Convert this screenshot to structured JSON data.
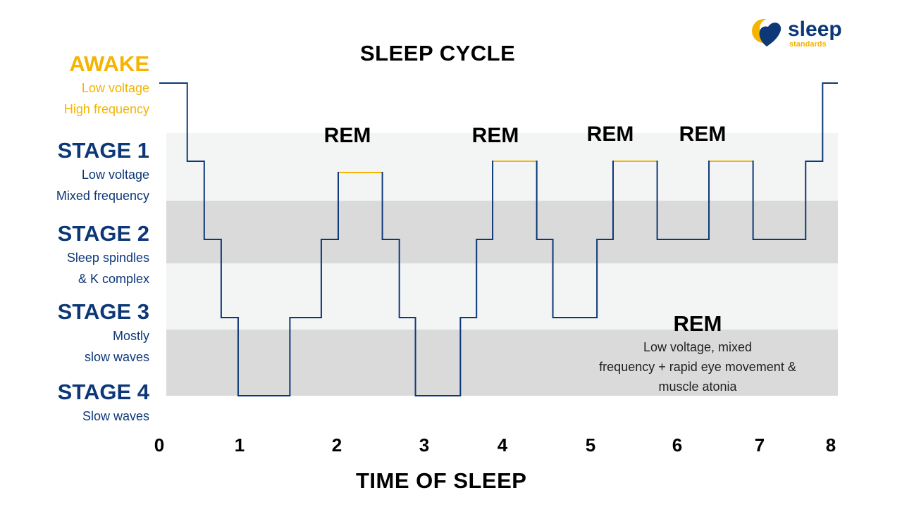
{
  "title": "SLEEP CYCLE",
  "logo": {
    "word": "sleep",
    "subword": "standards"
  },
  "stages": [
    {
      "name": "AWAKE",
      "desc": [
        "Low voltage",
        "High frequency"
      ]
    },
    {
      "name": "STAGE 1",
      "desc": [
        "Low voltage",
        "Mixed frequency"
      ]
    },
    {
      "name": "STAGE 2",
      "desc": [
        "Sleep spindles",
        "& K complex"
      ]
    },
    {
      "name": "STAGE 3",
      "desc": [
        "Mostly",
        "slow waves"
      ]
    },
    {
      "name": "STAGE 4",
      "desc": [
        "Slow waves"
      ]
    }
  ],
  "rem_note": {
    "heading": "REM",
    "desc": [
      "Low voltage, mixed",
      "frequency + rapid eye movement &",
      "muscle atonia"
    ]
  },
  "colors": {
    "line": "#0d3878",
    "rem_highlight": "#f4b400",
    "band_light": "#f3f4f4",
    "band_dark": "#dadada",
    "awake_text": "#f4b400",
    "stage_text": "#0d3878"
  },
  "chart_data": {
    "type": "line",
    "title": "SLEEP CYCLE",
    "xlabel": "TIME OF SLEEP",
    "ylabel": "",
    "xlim": [
      0,
      8
    ],
    "x_ticks": [
      "0",
      "1",
      "2",
      "3",
      "4",
      "5",
      "6",
      "7",
      "8"
    ],
    "y_categories": [
      "AWAKE",
      "STAGE 1",
      "STAGE 2",
      "STAGE 3",
      "STAGE 4"
    ],
    "series": [
      {
        "step_path": [
          [
            0,
            "AWAKE"
          ],
          [
            0.33,
            "STAGE 1"
          ],
          [
            0.53,
            "STAGE 2"
          ],
          [
            0.73,
            "STAGE 3"
          ],
          [
            0.93,
            "STAGE 4"
          ],
          [
            1.54,
            "STAGE 3"
          ],
          [
            1.91,
            "STAGE 2"
          ],
          [
            2.11,
            "REM"
          ],
          [
            2.63,
            "STAGE 2"
          ],
          [
            2.83,
            "STAGE 3"
          ],
          [
            3.02,
            "STAGE 4"
          ],
          [
            3.55,
            "STAGE 3"
          ],
          [
            3.74,
            "STAGE 2"
          ],
          [
            3.93,
            "REM"
          ],
          [
            4.45,
            "STAGE 2"
          ],
          [
            4.64,
            "STAGE 3"
          ],
          [
            5.16,
            "STAGE 2"
          ],
          [
            5.35,
            "REM"
          ],
          [
            5.87,
            "STAGE 2"
          ],
          [
            6.48,
            "REM"
          ],
          [
            7.0,
            "STAGE 2"
          ],
          [
            7.62,
            "STAGE 1"
          ],
          [
            7.82,
            "AWAKE"
          ],
          [
            8.0,
            "AWAKE"
          ]
        ]
      }
    ],
    "rem_periods": [
      {
        "label": "REM",
        "start": 2.11,
        "end": 2.63
      },
      {
        "label": "REM",
        "start": 3.93,
        "end": 4.45
      },
      {
        "label": "REM",
        "start": 5.35,
        "end": 5.87
      },
      {
        "label": "REM",
        "start": 6.48,
        "end": 7.0
      }
    ],
    "grid": false,
    "legend": "none"
  }
}
